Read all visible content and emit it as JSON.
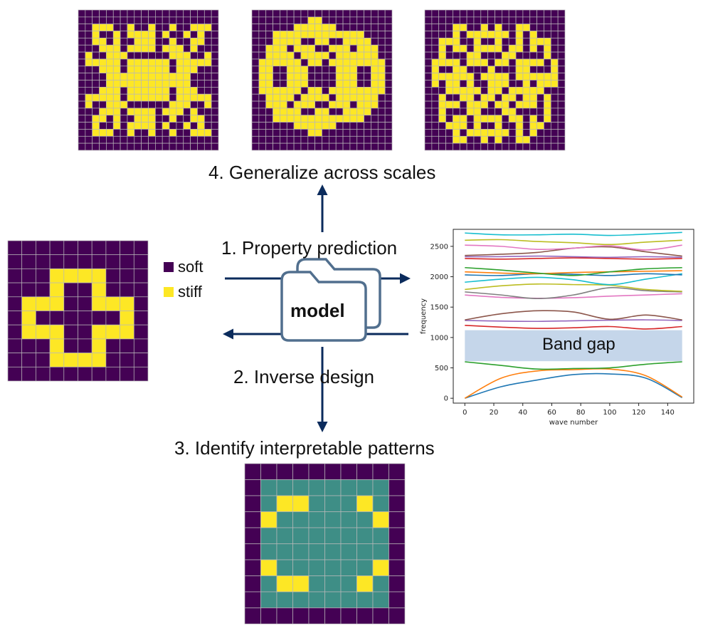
{
  "colors": {
    "soft": "#440154",
    "stiff": "#fde725",
    "interpretable": "#3e8e86",
    "grid_line": "#b8b8b8",
    "arrow": "#0b2b5c",
    "folder_stroke": "#516f8e",
    "band_gap": "#c5d6ea"
  },
  "steps": {
    "property_prediction": "1. Property  prediction",
    "inverse_design": "2. Inverse  design",
    "interpretable": "3. Identify interpretable patterns",
    "generalize": "4. Generalize across scales"
  },
  "legend": {
    "soft": "soft",
    "stiff": "stiff"
  },
  "model_label": "model",
  "band_gap_label": "Band gap",
  "chart_data": {
    "type": "line",
    "xlabel": "wave number",
    "ylabel": "frequency",
    "xlim": [
      -8,
      158
    ],
    "ylim": [
      -80,
      2780
    ],
    "xticks": [
      0,
      20,
      40,
      60,
      80,
      100,
      120,
      140
    ],
    "yticks": [
      0,
      500,
      1000,
      1500,
      2000,
      2500
    ],
    "band_gap": [
      610,
      1120
    ],
    "series_x": [
      0,
      25,
      50,
      75,
      100,
      125,
      150
    ],
    "series": [
      {
        "color": "#1f77b4",
        "values": [
          0,
          190,
          300,
          390,
          400,
          330,
          10
        ]
      },
      {
        "color": "#ff7f0e",
        "values": [
          0,
          330,
          450,
          470,
          480,
          370,
          20
        ]
      },
      {
        "color": "#2ca02c",
        "values": [
          600,
          540,
          480,
          490,
          500,
          560,
          600
        ]
      },
      {
        "color": "#d62728",
        "values": [
          1200,
          1170,
          1150,
          1160,
          1180,
          1140,
          1180
        ]
      },
      {
        "color": "#9467bd",
        "values": [
          1280,
          1270,
          1265,
          1275,
          1285,
          1290,
          1280
        ]
      },
      {
        "color": "#8c564b",
        "values": [
          1290,
          1390,
          1440,
          1420,
          1300,
          1370,
          1290
        ]
      },
      {
        "color": "#e377c2",
        "values": [
          1700,
          1660,
          1645,
          1655,
          1680,
          1700,
          1720
        ]
      },
      {
        "color": "#7f7f7f",
        "values": [
          1750,
          1700,
          1640,
          1700,
          1820,
          1770,
          1750
        ]
      },
      {
        "color": "#bcbd22",
        "values": [
          1790,
          1850,
          1880,
          1870,
          1860,
          1790,
          1760
        ]
      },
      {
        "color": "#17becf",
        "values": [
          1910,
          1960,
          1990,
          1950,
          1870,
          1960,
          2050
        ]
      },
      {
        "color": "#1f77b4",
        "values": [
          2030,
          2020,
          2050,
          2040,
          2020,
          2050,
          2030
        ]
      },
      {
        "color": "#ff7f0e",
        "values": [
          2080,
          2060,
          2050,
          2070,
          2080,
          2090,
          2100
        ]
      },
      {
        "color": "#2ca02c",
        "values": [
          2150,
          2110,
          2060,
          2020,
          2080,
          2130,
          2150
        ]
      },
      {
        "color": "#d62728",
        "values": [
          2300,
          2290,
          2300,
          2310,
          2300,
          2290,
          2300
        ]
      },
      {
        "color": "#9467bd",
        "values": [
          2330,
          2330,
          2340,
          2330,
          2320,
          2330,
          2320
        ]
      },
      {
        "color": "#8c564b",
        "values": [
          2350,
          2370,
          2400,
          2470,
          2490,
          2410,
          2340
        ]
      },
      {
        "color": "#e377c2",
        "values": [
          2520,
          2500,
          2450,
          2470,
          2510,
          2440,
          2520
        ]
      },
      {
        "color": "#bcbd22",
        "values": [
          2600,
          2610,
          2580,
          2560,
          2530,
          2570,
          2600
        ]
      },
      {
        "color": "#17becf",
        "values": [
          2720,
          2690,
          2690,
          2700,
          2680,
          2700,
          2730
        ]
      }
    ]
  },
  "patterns": {
    "tl": {
      "cols": 10,
      "rows": 10,
      "cells": [
        "0000000000",
        "0000000000",
        "0001111000",
        "0001001000",
        "0111001110",
        "0100000010",
        "0111001110",
        "0001001000",
        "0001111000",
        "0000000000"
      ]
    },
    "bottom": {
      "cols": 10,
      "rows": 10,
      "cells": [
        "0000000000",
        "0222222220",
        "0213222320",
        "0322222230",
        "0222222220",
        "0222222220",
        "0322222230",
        "0213222320",
        "0222222220",
        "0000000000"
      ]
    },
    "top1": {
      "cols": 20,
      "rows": 20,
      "cells": [
        "00000000000000000000",
        "00000000000000000000",
        "00111001001001001110",
        "00100101111010010100",
        "00110100111001001100",
        "00011101111011101000",
        "01001110000001110010",
        "01111101111110111110",
        "00011101111110111000",
        "00001111111111110000",
        "00001111111111110000",
        "00011101111110111000",
        "01111101111110111110",
        "01001110000001110010",
        "00011101111011101000",
        "00110100111001001100",
        "00100101111010010100",
        "00111001001001001110",
        "00000000000000000000",
        "00000000000000000000"
      ]
    },
    "top2": {
      "cols": 20,
      "rows": 20,
      "cells": [
        "00000000000000000000",
        "00000000110000000000",
        "00000011111100000000",
        "00011111111111110000",
        "00011110011001111000",
        "00111011100111011100",
        "00111101111011111100",
        "01111110110111111110",
        "01100111000011100110",
        "01100111000011100110",
        "01100111000011100110",
        "01111110110111111110",
        "00111101111011111100",
        "00111011100111011100",
        "00011110011001111000",
        "00011111111111110000",
        "00000011111100000000",
        "00000000110000000000",
        "00000000000000000000",
        "00000000000000000000"
      ]
    },
    "top3": {
      "cols": 20,
      "rows": 20,
      "cells": [
        "00000000000000000000",
        "00000000000000000000",
        "00001100101001100000",
        "00001011111101010000",
        "00111001001001011100",
        "00101101111011010100",
        "00100011000110000100",
        "01111011101101111010",
        "01001100010001100010",
        "01111110111101111110",
        "01011010011100101110",
        "00011111011011111000",
        "00100110110110110100",
        "00111011101101110100",
        "00100011000110000100",
        "00101101111011010100",
        "00011101001001011000",
        "00001011111101010000",
        "00001100101001100000",
        "00000000000000000000"
      ]
    }
  }
}
